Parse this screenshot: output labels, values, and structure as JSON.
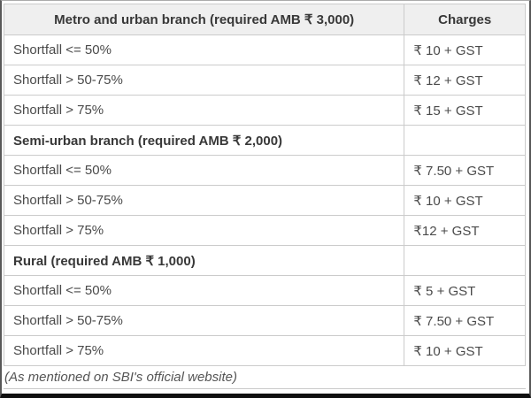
{
  "colors": {
    "header_bg": "#efefef",
    "table_border": "#cbcbcb",
    "header_text": "#383838",
    "body_text": "#4a4a4a",
    "footnote_text": "#555555",
    "frame_bottom_bar": "#0f0f0f"
  },
  "table": {
    "columns": [
      {
        "header": "Metro and urban branch (required AMB ₹ 3,000)"
      },
      {
        "header": "Charges"
      }
    ],
    "rows": [
      {
        "label": "Shortfall <= 50%",
        "charge": "₹ 10 + GST",
        "section": false
      },
      {
        "label": "Shortfall > 50-75%",
        "charge": "₹ 12 + GST",
        "section": false
      },
      {
        "label": "Shortfall > 75%",
        "charge": "₹ 15 + GST",
        "section": false
      },
      {
        "label": "Semi-urban branch (required AMB ₹ 2,000)",
        "charge": "",
        "section": true
      },
      {
        "label": "Shortfall <= 50%",
        "charge": "₹ 7.50 + GST",
        "section": false
      },
      {
        "label": "Shortfall > 50-75%",
        "charge": "₹ 10 + GST",
        "section": false
      },
      {
        "label": "Shortfall > 75%",
        "charge": "₹12 + GST",
        "section": false
      },
      {
        "label": "Rural (required AMB ₹ 1,000)",
        "charge": "",
        "section": true
      },
      {
        "label": "Shortfall <= 50%",
        "charge": "₹ 5 + GST",
        "section": false
      },
      {
        "label": "Shortfall > 50-75%",
        "charge": "₹ 7.50 + GST",
        "section": false
      },
      {
        "label": "Shortfall > 75%",
        "charge": "₹ 10 + GST",
        "section": false
      }
    ],
    "footnote": "(As mentioned on SBI's official website)"
  }
}
